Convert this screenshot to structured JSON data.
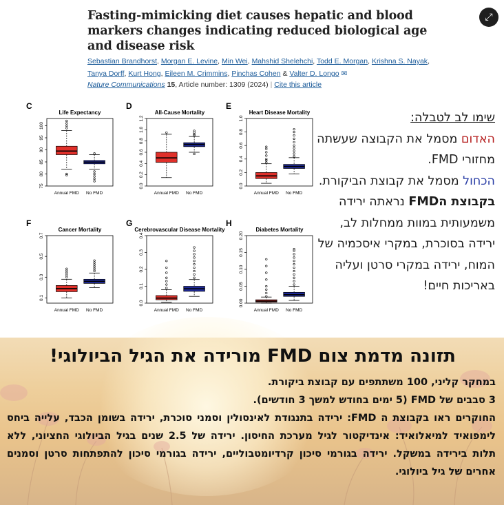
{
  "article": {
    "title": "Fasting-mimicking diet causes hepatic and blood markers changes indicating reduced biological age and disease risk",
    "authors": [
      "Sebastian Brandhorst",
      "Morgan E. Levine",
      "Min Wei",
      "Mahshid Shelehchi",
      "Todd E. Morgan",
      "Krishna S. Nayak",
      "Tanya Dorff",
      "Kurt Hong",
      "Eileen M. Crimmins",
      "Pinchas Cohen",
      "Valter D. Longo"
    ],
    "author_sep": ",",
    "author_and": "&",
    "journal": "Nature Communications",
    "volume": "15",
    "article_number": ", Article number: 1309 (2024)",
    "cite_label": "Cite this article",
    "expand_icon": "⤢"
  },
  "colors": {
    "fmd": "#e0302a",
    "nofmd": "#1f2a9a",
    "red_text": "#b62020",
    "blue_text": "#2a3ea6"
  },
  "chart_data": [
    {
      "type": "box",
      "panel": "C",
      "title": "Life Expectancy",
      "categories": [
        "Annual FMD",
        "No FMD"
      ],
      "ylim": [
        75,
        103
      ],
      "yticks": [
        "75",
        "80",
        "85",
        "90",
        "95",
        "100"
      ],
      "ytick_values": [
        75,
        80,
        85,
        90,
        95,
        100
      ],
      "boxes": [
        {
          "q1": 88,
          "median": 89.5,
          "q3": 91.5,
          "wlo": 82,
          "whi": 98,
          "outlo": [
            80,
            79.5
          ],
          "outhi": [
            99,
            100,
            101,
            102
          ]
        },
        {
          "q1": 84.2,
          "median": 84.9,
          "q3": 85.6,
          "wlo": 82,
          "whi": 88,
          "outlo": [
            81,
            80,
            79,
            78,
            77
          ],
          "outhi": [
            88.5
          ]
        }
      ]
    },
    {
      "type": "box",
      "panel": "D",
      "title": "All-Cause Mortality",
      "categories": [
        "Annual FMD",
        "No FMD"
      ],
      "ylim": [
        0,
        1.2
      ],
      "yticks": [
        "0.0",
        "0.2",
        "0.4",
        "0.6",
        "0.8",
        "1.0",
        "1.2"
      ],
      "ytick_values": [
        0,
        0.2,
        0.4,
        0.6,
        0.8,
        1.0,
        1.2
      ],
      "boxes": [
        {
          "q1": 0.42,
          "median": 0.5,
          "q3": 0.6,
          "wlo": 0.15,
          "whi": 0.92,
          "outlo": [],
          "outhi": [
            0.95
          ]
        },
        {
          "q1": 0.7,
          "median": 0.74,
          "q3": 0.77,
          "wlo": 0.6,
          "whi": 0.88,
          "outlo": [
            0.57
          ],
          "outhi": [
            0.9,
            0.92,
            0.95,
            0.98
          ]
        }
      ]
    },
    {
      "type": "box",
      "panel": "E",
      "title": "Heart Disease Mortality",
      "categories": [
        "Annual FMD",
        "No FMD"
      ],
      "ylim": [
        0,
        1.0
      ],
      "yticks": [
        "0.0",
        "0.2",
        "0.4",
        "0.6",
        "0.8",
        "1.0"
      ],
      "ytick_values": [
        0,
        0.2,
        0.4,
        0.6,
        0.8,
        1.0
      ],
      "boxes": [
        {
          "q1": 0.11,
          "median": 0.15,
          "q3": 0.2,
          "wlo": 0.04,
          "whi": 0.33,
          "outlo": [],
          "outhi": [
            0.35,
            0.38,
            0.4,
            0.45,
            0.5,
            0.55,
            0.58
          ]
        },
        {
          "q1": 0.26,
          "median": 0.29,
          "q3": 0.32,
          "wlo": 0.18,
          "whi": 0.42,
          "outlo": [],
          "outhi": [
            0.44,
            0.48,
            0.52,
            0.56,
            0.6,
            0.65,
            0.7,
            0.75,
            0.8,
            0.84
          ]
        }
      ]
    },
    {
      "type": "box",
      "panel": "F",
      "title": "Cancer Mortality",
      "categories": [
        "Annual FMD",
        "No FMD"
      ],
      "ylim": [
        0.05,
        0.7
      ],
      "yticks": [
        "0.1",
        "0.3",
        "0.5",
        "0.7"
      ],
      "ytick_values": [
        0.1,
        0.3,
        0.5,
        0.7
      ],
      "boxes": [
        {
          "q1": 0.16,
          "median": 0.19,
          "q3": 0.22,
          "wlo": 0.1,
          "whi": 0.28,
          "outlo": [],
          "outhi": [
            0.3,
            0.32,
            0.34,
            0.36,
            0.38
          ]
        },
        {
          "q1": 0.24,
          "median": 0.26,
          "q3": 0.28,
          "wlo": 0.2,
          "whi": 0.34,
          "outlo": [],
          "outhi": [
            0.36,
            0.38,
            0.4,
            0.42,
            0.44,
            0.46
          ]
        }
      ]
    },
    {
      "type": "box",
      "panel": "G",
      "title": "Cerebrovascular Disease Mortality",
      "categories": [
        "Annual FMD",
        "No FMD"
      ],
      "ylim": [
        0,
        0.4
      ],
      "yticks": [
        "0.0",
        "0.1",
        "0.2",
        "0.3",
        "0.4"
      ],
      "ytick_values": [
        0,
        0.1,
        0.2,
        0.3,
        0.4
      ],
      "boxes": [
        {
          "q1": 0.02,
          "median": 0.03,
          "q3": 0.045,
          "wlo": 0.005,
          "whi": 0.08,
          "outlo": [],
          "outhi": [
            0.09,
            0.11,
            0.13,
            0.15,
            0.18,
            0.21,
            0.25
          ]
        },
        {
          "q1": 0.07,
          "median": 0.085,
          "q3": 0.1,
          "wlo": 0.04,
          "whi": 0.14,
          "outlo": [],
          "outhi": [
            0.15,
            0.17,
            0.19,
            0.21,
            0.23,
            0.25,
            0.27,
            0.29,
            0.31,
            0.33
          ]
        }
      ]
    },
    {
      "type": "box",
      "panel": "H",
      "title": "Diabetes Mortality",
      "categories": [
        "Annual FMD",
        "No FMD"
      ],
      "ylim": [
        0,
        0.2
      ],
      "yticks": [
        "0.00",
        "0.05",
        "0.10",
        "0.15",
        "0.20"
      ],
      "ytick_values": [
        0,
        0.05,
        0.1,
        0.15,
        0.2
      ],
      "boxes": [
        {
          "q1": 0.003,
          "median": 0.006,
          "q3": 0.01,
          "wlo": 0,
          "whi": 0.018,
          "outlo": [],
          "outhi": [
            0.02,
            0.03,
            0.04,
            0.05,
            0.07,
            0.09,
            0.11,
            0.13
          ]
        },
        {
          "q1": 0.02,
          "median": 0.025,
          "q3": 0.032,
          "wlo": 0.008,
          "whi": 0.05,
          "outlo": [],
          "outhi": [
            0.055,
            0.065,
            0.075,
            0.085,
            0.095,
            0.105,
            0.115,
            0.125,
            0.135,
            0.145,
            0.155,
            0.16
          ]
        }
      ]
    }
  ],
  "note": {
    "heading": "שימו לב לטבלה:",
    "red_word": "האדום",
    "red_rest": " מסמל את הקבוצה שעשתה מחזורי FMD.",
    "blue_word": "הכחול",
    "blue_rest": " מסמל את קבוצת הביקורת.",
    "fmd_group": "בקבוצת הFMD",
    "fmd_rest": " נראתה ירידה משמעותית במוות ממחלות לב, ירידה בסוכרת, במקרי איסכמיה של המוח, ירידה במקרי סרטן ועליה באריכות חיים!"
  },
  "banner": {
    "title": "תזונה מדמת צום FMD מורידה את הגיל הביולוגי!",
    "line1": "במחקר קליני, 100 משתתפים עם קבוצת ביקורת.",
    "line2": "3 סבבים של FMD (5 ימים בחודש למשך 3 חודשים).",
    "line3": "החוקרים ראו בקבוצת ה FMD: ירידה בתנגודת לאינסולין וסמני סוכרת, ירידה בשומן הכבד, עלייה ביחס לימפואיד למיאלואיד: אינדיקטור לגיל מערכת החיסון. ירידה של 2.5 שנים בגיל הביולוגי החציוני, ללא תלות בירידה במשקל. ירידה בגורמי סיכון קרדיומטבוליים, ירידה בגורמי סיכון להתפתחות סרטן וסמנים אחרים של גיל ביולוגי."
  }
}
